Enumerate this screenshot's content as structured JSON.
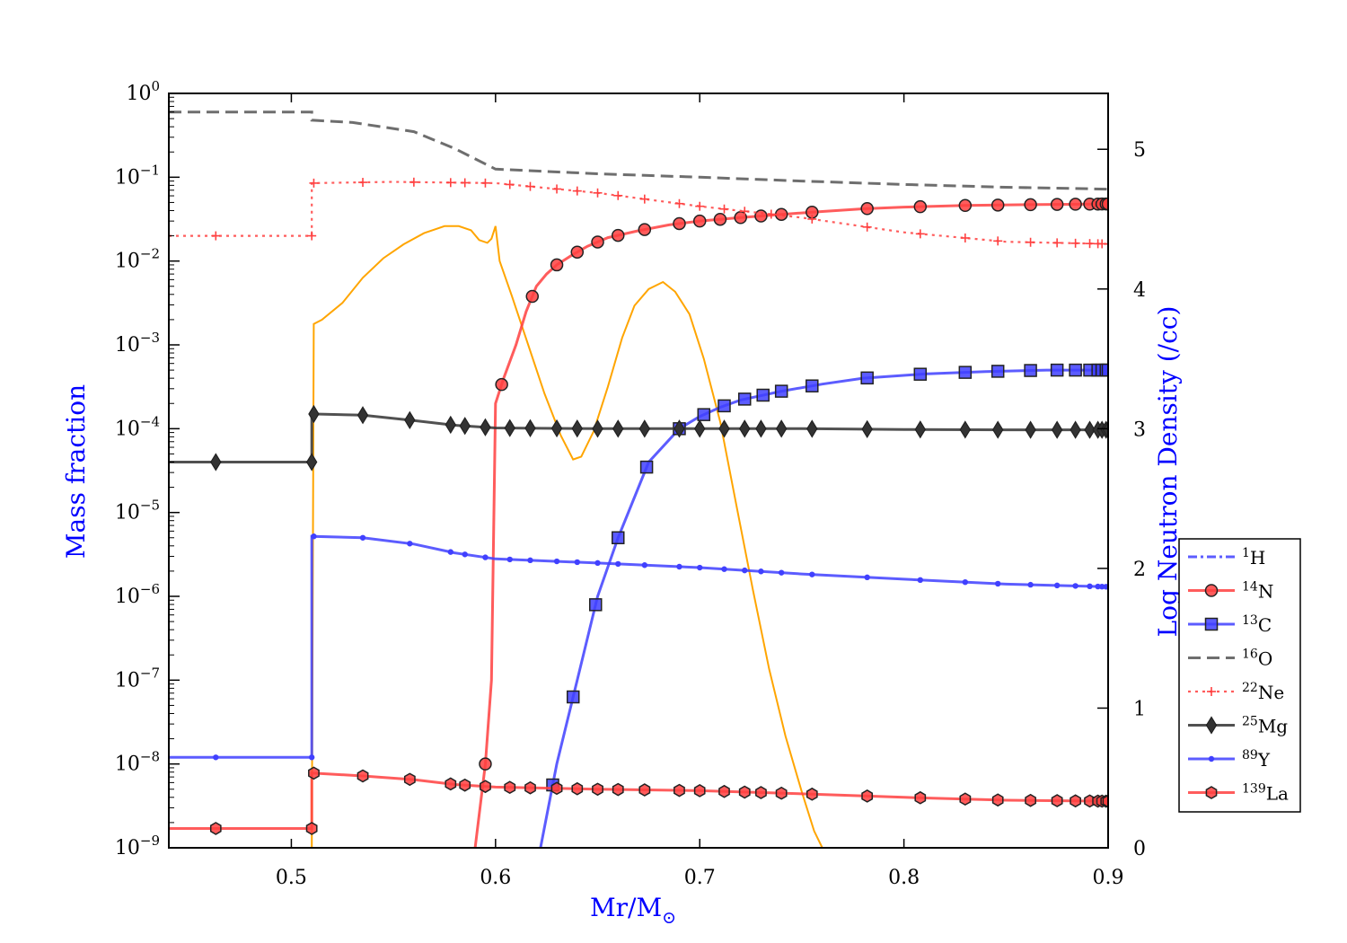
{
  "chart_data": {
    "type": "line",
    "xlabel": "Mr/M",
    "xlabel_sub": "⊙",
    "ylabel_left": "Mass fraction",
    "ylabel_right": "Log Neutron Density (/cc)",
    "xlim": [
      0.44,
      0.9
    ],
    "ylim_left": [
      1e-09,
      1
    ],
    "yscale_left": "log",
    "ylim_right": [
      0,
      5.4
    ],
    "legend_position": "center-right-outside",
    "x_ticks": [
      "0.5",
      "0.6",
      "0.7",
      "0.8",
      "0.9"
    ],
    "x_tick_values": [
      0.5,
      0.6,
      0.7,
      0.8,
      0.9
    ],
    "y_left_ticks": [
      {
        "base": "10",
        "exp": "0",
        "value": 0
      },
      {
        "base": "10",
        "exp": "−1",
        "value": -1
      },
      {
        "base": "10",
        "exp": "−2",
        "value": -2
      },
      {
        "base": "10",
        "exp": "−3",
        "value": -3
      },
      {
        "base": "10",
        "exp": "−4",
        "value": -4
      },
      {
        "base": "10",
        "exp": "−5",
        "value": -5
      },
      {
        "base": "10",
        "exp": "−6",
        "value": -6
      },
      {
        "base": "10",
        "exp": "−7",
        "value": -7
      },
      {
        "base": "10",
        "exp": "−8",
        "value": -8
      },
      {
        "base": "10",
        "exp": "−9",
        "value": -9
      }
    ],
    "y_right_ticks": [
      "0",
      "1",
      "2",
      "3",
      "4",
      "5"
    ],
    "y_right_tick_values": [
      0,
      1,
      2,
      3,
      4,
      5
    ],
    "series": [
      {
        "name": "H",
        "mass": "1",
        "color": "#4040ff",
        "dash": "dashdot",
        "marker": "none",
        "x": [],
        "y": []
      },
      {
        "name": "N",
        "mass": "14",
        "color": "#ff4040",
        "dash": "solid",
        "marker": "circle",
        "x": [
          0.59,
          0.595,
          0.598,
          0.6,
          0.604,
          0.61,
          0.615,
          0.62,
          0.625,
          0.63,
          0.638,
          0.645,
          0.655,
          0.67,
          0.685,
          0.7,
          0.72,
          0.74,
          0.76,
          0.78,
          0.8,
          0.83,
          0.86,
          0.88,
          0.9
        ],
        "y": [
          1e-09,
          1e-08,
          1e-07,
          0.0002,
          0.0004,
          0.001,
          0.0025,
          0.005,
          0.007,
          0.009,
          0.012,
          0.015,
          0.019,
          0.023,
          0.027,
          0.03,
          0.033,
          0.036,
          0.039,
          0.042,
          0.044,
          0.046,
          0.047,
          0.0475,
          0.048
        ],
        "marker_x": [
          0.595,
          0.603,
          0.618,
          0.63,
          0.64,
          0.65,
          0.66,
          0.673,
          0.69,
          0.7,
          0.71,
          0.72,
          0.73,
          0.74,
          0.755,
          0.782,
          0.808,
          0.83,
          0.846,
          0.862,
          0.875,
          0.884,
          0.891,
          0.895,
          0.897,
          0.899,
          0.9
        ]
      },
      {
        "name": "C",
        "mass": "13",
        "color": "#4040ff",
        "dash": "solid",
        "marker": "square",
        "x": [
          0.622,
          0.63,
          0.64,
          0.65,
          0.66,
          0.675,
          0.69,
          0.7,
          0.71,
          0.72,
          0.74,
          0.76,
          0.78,
          0.81,
          0.84,
          0.87,
          0.9
        ],
        "y": [
          1e-09,
          1e-08,
          1e-07,
          1e-06,
          5e-06,
          4e-05,
          0.0001,
          0.00014,
          0.00018,
          0.00022,
          0.00028,
          0.00034,
          0.0004,
          0.00045,
          0.00048,
          0.0005,
          0.0005
        ],
        "marker_x": [
          0.628,
          0.638,
          0.649,
          0.66,
          0.674,
          0.69,
          0.702,
          0.712,
          0.722,
          0.731,
          0.74,
          0.755,
          0.782,
          0.808,
          0.83,
          0.846,
          0.862,
          0.875,
          0.884,
          0.891,
          0.895,
          0.897,
          0.899,
          0.9
        ]
      },
      {
        "name": "O",
        "mass": "16",
        "color": "#555555",
        "dash": "dashed",
        "marker": "none",
        "x": [
          0.44,
          0.51,
          0.51,
          0.53,
          0.56,
          0.58,
          0.6,
          0.65,
          0.7,
          0.75,
          0.8,
          0.85,
          0.9
        ],
        "y": [
          0.6,
          0.6,
          0.48,
          0.45,
          0.35,
          0.22,
          0.125,
          0.11,
          0.1,
          0.09,
          0.082,
          0.076,
          0.072
        ]
      },
      {
        "name": "Ne",
        "mass": "22",
        "color": "#ff4040",
        "dash": "dotted",
        "marker": "plus",
        "x": [
          0.44,
          0.51,
          0.51,
          0.55,
          0.6,
          0.65,
          0.7,
          0.75,
          0.8,
          0.85,
          0.9
        ],
        "y": [
          0.02,
          0.02,
          0.085,
          0.088,
          0.085,
          0.065,
          0.045,
          0.033,
          0.022,
          0.017,
          0.016
        ],
        "marker_x": [
          0.463,
          0.51,
          0.511,
          0.535,
          0.56,
          0.578,
          0.585,
          0.595,
          0.607,
          0.617,
          0.63,
          0.64,
          0.65,
          0.66,
          0.673,
          0.69,
          0.7,
          0.712,
          0.722,
          0.735,
          0.755,
          0.782,
          0.808,
          0.83,
          0.846,
          0.862,
          0.875,
          0.884,
          0.891,
          0.895,
          0.897,
          0.9
        ]
      },
      {
        "name": "Mg",
        "mass": "25",
        "color": "#333333",
        "dash": "solid",
        "marker": "diamond",
        "x": [
          0.44,
          0.51,
          0.51,
          0.535,
          0.56,
          0.58,
          0.6,
          0.65,
          0.7,
          0.75,
          0.8,
          0.85,
          0.9
        ],
        "y": [
          4e-05,
          4e-05,
          0.00015,
          0.000145,
          0.000125,
          0.00011,
          0.000102,
          0.0001,
          0.0001,
          0.0001,
          9.8e-05,
          9.7e-05,
          9.7e-05
        ],
        "marker_x": [
          0.463,
          0.51,
          0.511,
          0.535,
          0.558,
          0.578,
          0.585,
          0.595,
          0.607,
          0.617,
          0.63,
          0.64,
          0.65,
          0.66,
          0.673,
          0.69,
          0.7,
          0.712,
          0.722,
          0.73,
          0.74,
          0.755,
          0.782,
          0.808,
          0.83,
          0.846,
          0.862,
          0.875,
          0.884,
          0.891,
          0.895,
          0.897,
          0.899,
          0.9
        ]
      },
      {
        "name": "Y",
        "mass": "89",
        "color": "#4040ff",
        "dash": "solid",
        "marker": "dot",
        "x": [
          0.44,
          0.51,
          0.51,
          0.535,
          0.56,
          0.58,
          0.6,
          0.65,
          0.7,
          0.75,
          0.8,
          0.85,
          0.9
        ],
        "y": [
          1.2e-08,
          1.2e-08,
          5.2e-06,
          5e-06,
          4.2e-06,
          3.3e-06,
          2.8e-06,
          2.5e-06,
          2.2e-06,
          1.85e-06,
          1.6e-06,
          1.4e-06,
          1.3e-06
        ],
        "marker_x": [
          0.463,
          0.51,
          0.511,
          0.535,
          0.558,
          0.578,
          0.585,
          0.595,
          0.607,
          0.617,
          0.63,
          0.64,
          0.65,
          0.66,
          0.673,
          0.69,
          0.7,
          0.712,
          0.722,
          0.73,
          0.74,
          0.755,
          0.782,
          0.808,
          0.83,
          0.846,
          0.862,
          0.875,
          0.884,
          0.891,
          0.895,
          0.897,
          0.899,
          0.9
        ]
      },
      {
        "name": "La",
        "mass": "139",
        "color": "#ff4040",
        "dash": "solid",
        "marker": "hexagon",
        "x": [
          0.44,
          0.51,
          0.51,
          0.535,
          0.56,
          0.58,
          0.6,
          0.65,
          0.7,
          0.75,
          0.8,
          0.85,
          0.9
        ],
        "y": [
          1.7e-09,
          1.7e-09,
          7.8e-09,
          7.2e-09,
          6.5e-09,
          5.7e-09,
          5.3e-09,
          5e-09,
          4.8e-09,
          4.4e-09,
          4e-09,
          3.7e-09,
          3.6e-09
        ],
        "marker_x": [
          0.463,
          0.51,
          0.511,
          0.535,
          0.558,
          0.578,
          0.585,
          0.595,
          0.607,
          0.617,
          0.63,
          0.64,
          0.65,
          0.66,
          0.673,
          0.69,
          0.7,
          0.712,
          0.722,
          0.73,
          0.74,
          0.755,
          0.782,
          0.808,
          0.83,
          0.846,
          0.862,
          0.875,
          0.884,
          0.891,
          0.895,
          0.897,
          0.899,
          0.9
        ]
      }
    ],
    "neutron_density": {
      "axis": "right",
      "color": "#ffa500",
      "x": [
        0.51,
        0.511,
        0.515,
        0.525,
        0.535,
        0.545,
        0.555,
        0.565,
        0.575,
        0.582,
        0.588,
        0.592,
        0.596,
        0.598,
        0.6,
        0.602,
        0.608,
        0.616,
        0.624,
        0.632,
        0.638,
        0.642,
        0.648,
        0.655,
        0.662,
        0.668,
        0.675,
        0.682,
        0.688,
        0.695,
        0.702,
        0.71,
        0.718,
        0.726,
        0.734,
        0.742,
        0.75,
        0.756,
        0.76
      ],
      "y": [
        0,
        3.75,
        3.78,
        3.9,
        4.08,
        4.22,
        4.32,
        4.4,
        4.45,
        4.45,
        4.42,
        4.35,
        4.33,
        4.36,
        4.45,
        4.2,
        3.95,
        3.6,
        3.25,
        2.95,
        2.78,
        2.8,
        2.98,
        3.3,
        3.65,
        3.88,
        4.0,
        4.05,
        3.98,
        3.82,
        3.5,
        3.05,
        2.45,
        1.85,
        1.28,
        0.8,
        0.4,
        0.12,
        0
      ]
    }
  }
}
